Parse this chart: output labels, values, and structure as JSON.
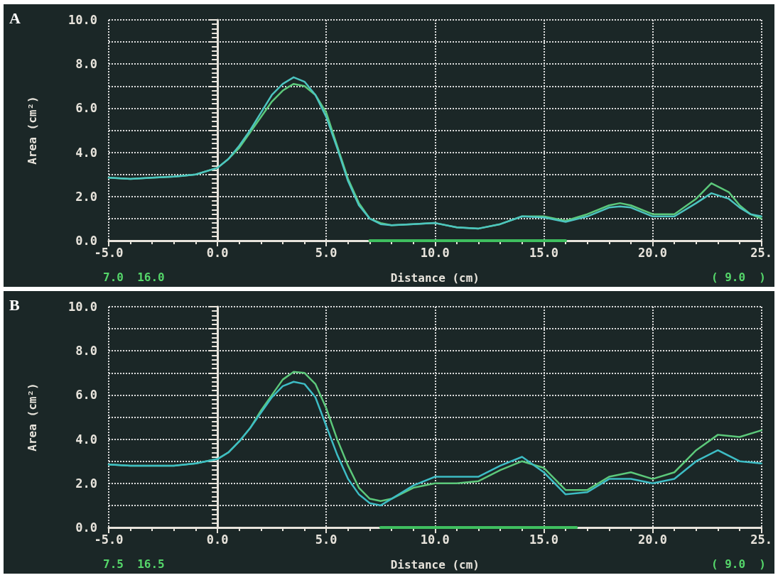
{
  "chart_data": [
    {
      "type": "line",
      "title": "A",
      "xlabel": "Distance (cm)",
      "ylabel": "Area (cm²)",
      "grid": true,
      "line_style": "solid",
      "xlim": [
        -5,
        25
      ],
      "xticks": [
        {
          "value": -5,
          "label": "-5.0"
        },
        {
          "value": 0,
          "label": "0.0"
        },
        {
          "value": 5,
          "label": "5.0"
        },
        {
          "value": 10,
          "label": "10.0"
        },
        {
          "value": 15,
          "label": "15.0"
        },
        {
          "value": 20,
          "label": "20.0"
        },
        {
          "value": 25,
          "label": "25."
        }
      ],
      "ylim": [
        0,
        10
      ],
      "yticks": [
        {
          "value": 0,
          "label": "0.0"
        },
        {
          "value": 1,
          "label": null
        },
        {
          "value": 2,
          "label": "2.0"
        },
        {
          "value": 3,
          "label": null
        },
        {
          "value": 4,
          "label": "4.0"
        },
        {
          "value": 5,
          "label": null
        },
        {
          "value": 6,
          "label": "6.0"
        },
        {
          "value": 7,
          "label": null
        },
        {
          "value": 8,
          "label": "8.0"
        },
        {
          "value": 9,
          "label": null
        },
        {
          "value": 10,
          "label": "10.0"
        }
      ],
      "series": [
        {
          "color": "#5cc87a",
          "x": [
            -5,
            -4,
            -3,
            -2,
            -1,
            0,
            0.5,
            1,
            1.5,
            2,
            2.5,
            3,
            3.5,
            4,
            4.5,
            5,
            5.5,
            6,
            6.5,
            7,
            7.5,
            8,
            9,
            10,
            11,
            12,
            13,
            14,
            15,
            16,
            17,
            18,
            18.5,
            19,
            20,
            21,
            22,
            22.7,
            23.5,
            24,
            24.5,
            25
          ],
          "values": [
            2.85,
            2.8,
            2.85,
            2.9,
            3.0,
            3.3,
            3.7,
            4.2,
            4.9,
            5.6,
            6.3,
            6.8,
            7.1,
            7.0,
            6.6,
            5.8,
            4.3,
            2.8,
            1.7,
            1.0,
            0.8,
            0.7,
            0.75,
            0.8,
            0.6,
            0.55,
            0.75,
            1.1,
            1.1,
            0.9,
            1.2,
            1.6,
            1.7,
            1.6,
            1.2,
            1.2,
            1.9,
            2.6,
            2.2,
            1.6,
            1.2,
            1.0
          ]
        },
        {
          "color": "#4cc4c0",
          "x": [
            -5,
            -4,
            -3,
            -2,
            -1,
            0,
            0.5,
            1,
            1.5,
            2,
            2.5,
            3,
            3.5,
            4,
            4.5,
            5,
            5.5,
            6,
            6.5,
            7,
            7.5,
            8,
            9,
            10,
            11,
            12,
            13,
            14,
            15,
            16,
            17,
            18,
            18.5,
            19,
            20,
            21,
            22,
            22.7,
            23.5,
            24,
            24.5,
            25
          ],
          "values": [
            2.85,
            2.8,
            2.85,
            2.9,
            3.0,
            3.3,
            3.7,
            4.3,
            5.0,
            5.8,
            6.6,
            7.1,
            7.4,
            7.2,
            6.6,
            5.6,
            4.2,
            2.7,
            1.6,
            1.0,
            0.75,
            0.7,
            0.75,
            0.8,
            0.6,
            0.55,
            0.75,
            1.1,
            1.05,
            0.85,
            1.1,
            1.5,
            1.55,
            1.5,
            1.1,
            1.1,
            1.7,
            2.15,
            1.9,
            1.5,
            1.2,
            1.1
          ]
        },
        {
          "color": "#3fbf5f",
          "x": [
            7,
            16
          ],
          "values": [
            0,
            0
          ]
        }
      ],
      "annotations": [
        "7.0  16.0",
        "( 9.0  )"
      ]
    },
    {
      "type": "line",
      "title": "B",
      "xlabel": "Distance (cm)",
      "ylabel": "Area (cm²)",
      "grid": true,
      "line_style": "solid",
      "xlim": [
        -5,
        25
      ],
      "xticks": [
        {
          "value": -5,
          "label": "-5.0"
        },
        {
          "value": 0,
          "label": "0.0"
        },
        {
          "value": 5,
          "label": "5.0"
        },
        {
          "value": 10,
          "label": "10.0"
        },
        {
          "value": 15,
          "label": "15.0"
        },
        {
          "value": 20,
          "label": "20.0"
        },
        {
          "value": 25,
          "label": "25."
        }
      ],
      "ylim": [
        0,
        10
      ],
      "yticks": [
        {
          "value": 0,
          "label": "0.0"
        },
        {
          "value": 1,
          "label": null
        },
        {
          "value": 2,
          "label": "2.0"
        },
        {
          "value": 3,
          "label": null
        },
        {
          "value": 4,
          "label": "4.0"
        },
        {
          "value": 5,
          "label": null
        },
        {
          "value": 6,
          "label": "6.0"
        },
        {
          "value": 7,
          "label": null
        },
        {
          "value": 8,
          "label": "8.0"
        },
        {
          "value": 9,
          "label": null
        },
        {
          "value": 10,
          "label": "10.0"
        }
      ],
      "series": [
        {
          "color": "#5cc87a",
          "x": [
            -5,
            -4,
            -3,
            -2,
            -1,
            0,
            0.5,
            1,
            1.5,
            2,
            2.5,
            3,
            3.5,
            4,
            4.5,
            5,
            5.5,
            6,
            6.5,
            7,
            7.5,
            8,
            9,
            10,
            11,
            12,
            13,
            14,
            15,
            16,
            17,
            18,
            19,
            20,
            21,
            22,
            23,
            24,
            25
          ],
          "values": [
            2.85,
            2.8,
            2.8,
            2.8,
            2.9,
            3.1,
            3.4,
            3.9,
            4.5,
            5.3,
            6.0,
            6.7,
            7.05,
            7.0,
            6.5,
            5.4,
            4.0,
            2.8,
            1.8,
            1.3,
            1.2,
            1.3,
            1.8,
            2.0,
            2.0,
            2.1,
            2.6,
            3.0,
            2.7,
            1.7,
            1.7,
            2.3,
            2.5,
            2.2,
            2.5,
            3.5,
            4.2,
            4.1,
            4.4
          ]
        },
        {
          "color": "#3dbcc4",
          "x": [
            -5,
            -4,
            -3,
            -2,
            -1,
            0,
            0.5,
            1,
            1.5,
            2,
            2.5,
            3,
            3.5,
            4,
            4.5,
            5,
            5.5,
            6,
            6.5,
            7,
            7.5,
            8,
            9,
            10,
            11,
            12,
            13,
            14,
            15,
            16,
            17,
            18,
            19,
            20,
            21,
            22,
            23,
            24,
            25
          ],
          "values": [
            2.85,
            2.8,
            2.8,
            2.8,
            2.9,
            3.1,
            3.4,
            3.9,
            4.5,
            5.2,
            5.9,
            6.4,
            6.6,
            6.5,
            5.9,
            4.6,
            3.3,
            2.2,
            1.5,
            1.1,
            1.0,
            1.3,
            1.9,
            2.3,
            2.3,
            2.3,
            2.8,
            3.2,
            2.5,
            1.5,
            1.6,
            2.2,
            2.2,
            2.0,
            2.2,
            3.0,
            3.5,
            3.0,
            2.9
          ]
        },
        {
          "color": "#3fbf5f",
          "x": [
            7.5,
            16.5
          ],
          "values": [
            0,
            0
          ]
        }
      ],
      "annotations": [
        "7.5  16.5",
        "( 9.0  )"
      ]
    }
  ]
}
